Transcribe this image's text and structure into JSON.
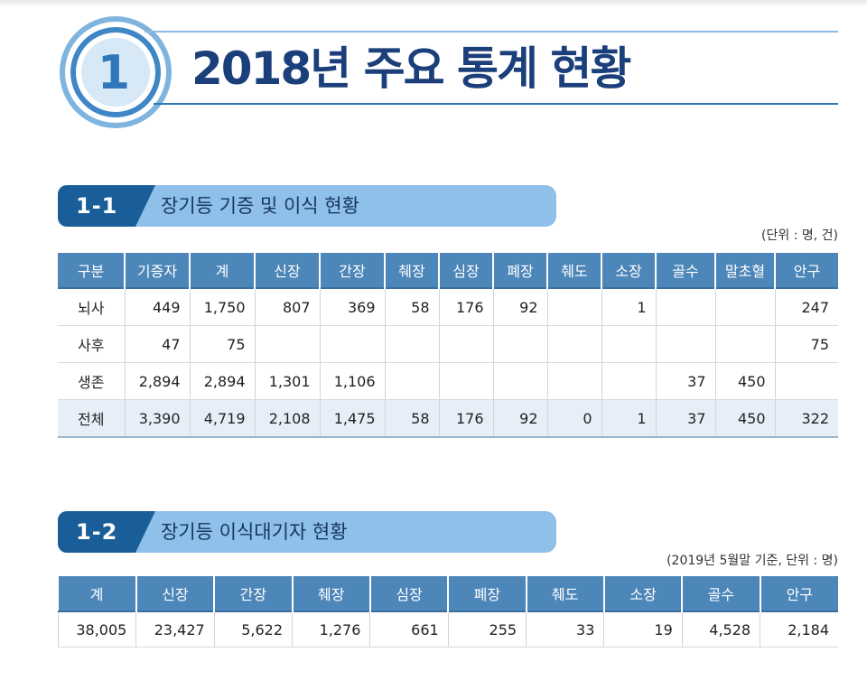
{
  "header": {
    "chapter_number": "1",
    "title": "2018년 주요 통계 현황"
  },
  "section1": {
    "number": "1-1",
    "title": "장기등 기증 및 이식 현황",
    "unit": "(단위 : 명, 건)",
    "columns": [
      "구분",
      "기증자",
      "계",
      "신장",
      "간장",
      "췌장",
      "심장",
      "폐장",
      "췌도",
      "소장",
      "골수",
      "말초혈",
      "안구"
    ],
    "rows": [
      [
        "뇌사",
        "449",
        "1,750",
        "807",
        "369",
        "58",
        "176",
        "92",
        "",
        "1",
        "",
        "",
        "247"
      ],
      [
        "사후",
        "47",
        "75",
        "",
        "",
        "",
        "",
        "",
        "",
        "",
        "",
        "",
        "75"
      ],
      [
        "생존",
        "2,894",
        "2,894",
        "1,301",
        "1,106",
        "",
        "",
        "",
        "",
        "",
        "37",
        "450",
        ""
      ],
      [
        "전체",
        "3,390",
        "4,719",
        "2,108",
        "1,475",
        "58",
        "176",
        "92",
        "0",
        "1",
        "37",
        "450",
        "322"
      ]
    ]
  },
  "section2": {
    "number": "1-2",
    "title": "장기등 이식대기자 현황",
    "unit": "(2019년 5월말 기준, 단위 : 명)",
    "columns": [
      "계",
      "신장",
      "간장",
      "췌장",
      "심장",
      "폐장",
      "췌도",
      "소장",
      "골수",
      "안구"
    ],
    "rows": [
      [
        "38,005",
        "23,427",
        "5,622",
        "1,276",
        "661",
        "255",
        "33",
        "19",
        "4,528",
        "2,184"
      ]
    ]
  },
  "colors": {
    "title_navy": "#1b3f7a",
    "badge_blue": "#3f86c6",
    "header_cell": "#4d86b8",
    "total_row": "#e6eff8",
    "section_dark": "#1a5e99",
    "section_light": "#8fc0ea"
  }
}
